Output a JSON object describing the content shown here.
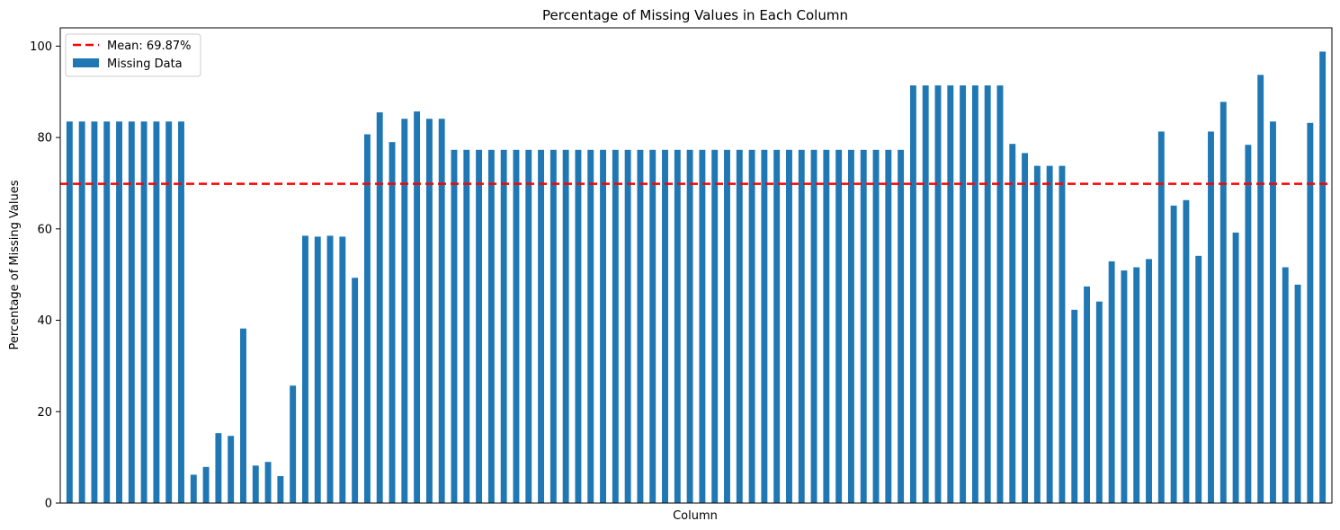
{
  "chart_data": {
    "type": "bar",
    "title": "Percentage of Missing Values in Each Column",
    "xlabel": "Column",
    "ylabel": "Percentage of Missing Values",
    "ylim": [
      0,
      104
    ],
    "yticks": [
      0,
      20,
      40,
      60,
      80,
      100
    ],
    "grid": false,
    "legend_position": "top-left",
    "series": [
      {
        "name": "Missing Data",
        "color": "#1f77b4",
        "values": [
          83.5,
          83.5,
          83.5,
          83.5,
          83.5,
          83.5,
          83.5,
          83.5,
          83.5,
          83.5,
          6.2,
          7.9,
          15.3,
          14.7,
          38.2,
          8.2,
          9.0,
          5.9,
          25.7,
          58.5,
          58.3,
          58.5,
          58.3,
          49.3,
          80.7,
          85.5,
          79.0,
          84.1,
          85.7,
          84.1,
          84.1,
          77.3,
          77.3,
          77.3,
          77.3,
          77.3,
          77.3,
          77.3,
          77.3,
          77.3,
          77.3,
          77.3,
          77.3,
          77.3,
          77.3,
          77.3,
          77.3,
          77.3,
          77.3,
          77.3,
          77.3,
          77.3,
          77.3,
          77.3,
          77.3,
          77.3,
          77.3,
          77.3,
          77.3,
          77.3,
          77.3,
          77.3,
          77.3,
          77.3,
          77.3,
          77.3,
          77.3,
          77.3,
          91.4,
          91.4,
          91.4,
          91.4,
          91.4,
          91.4,
          91.4,
          91.4,
          78.6,
          76.6,
          73.8,
          73.8,
          73.8,
          42.3,
          47.4,
          44.1,
          52.9,
          50.9,
          51.6,
          53.4,
          81.3,
          65.1,
          66.3,
          54.1,
          81.3,
          87.8,
          59.2,
          78.4,
          93.7,
          83.5,
          51.6,
          47.8,
          83.2,
          98.8
        ]
      }
    ],
    "reference_line": {
      "label": "Mean: 69.87%",
      "value": 69.87,
      "color": "#ff0000",
      "style": "dashed"
    }
  }
}
